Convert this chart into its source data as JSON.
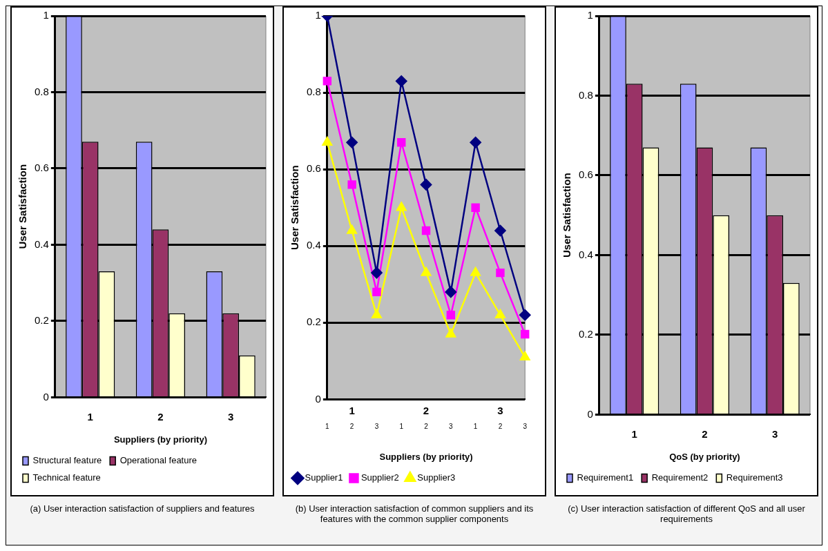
{
  "chart_data": [
    {
      "type": "bar",
      "categories": [
        "1",
        "2",
        "3"
      ],
      "ylabel": "User Satisfaction",
      "xlabel": "Suppliers (by priority)",
      "ylim": [
        0,
        1
      ],
      "yticks": [
        0,
        0.2,
        0.4,
        0.6,
        0.8,
        1
      ],
      "grid": "y",
      "legend": "bottom left",
      "series": [
        {
          "name": "Structural feature",
          "color": "#9999ff",
          "values": [
            1,
            0.67,
            0.33
          ]
        },
        {
          "name": "Operational feature",
          "color": "#993366",
          "values": [
            0.67,
            0.44,
            0.22
          ]
        },
        {
          "name": "Technical feature",
          "color": "#ffffcc",
          "values": [
            0.33,
            0.22,
            0.11
          ]
        }
      ],
      "annotations": [
        "(a) User interaction satisfaction of suppliers and features"
      ]
    },
    {
      "type": "line",
      "categories": [
        "1",
        "2",
        "3",
        "1",
        "2",
        "3",
        "1",
        "2",
        "3"
      ],
      "ylabel": "User Satisfaction",
      "xlabel": "Suppliers (by priority)",
      "ylim": [
        0,
        1
      ],
      "yticks": [
        0,
        0.2,
        0.4,
        0.6,
        0.8,
        1
      ],
      "grid": "y",
      "legend": "bottom left",
      "series": [
        {
          "name": "Supplier1",
          "color": "#000080",
          "marker": "diamond",
          "values": [
            1,
            0.67,
            0.33,
            0.83,
            0.56,
            0.28,
            0.67,
            0.44,
            0.22
          ]
        },
        {
          "name": "Supplier2",
          "color": "#ff00ff",
          "marker": "square",
          "values": [
            0.83,
            0.56,
            0.28,
            0.67,
            0.44,
            0.22,
            0.5,
            0.33,
            0.17
          ]
        },
        {
          "name": "Supplier3",
          "color": "#ffff00",
          "marker": "triangle",
          "values": [
            0.67,
            0.44,
            0.22,
            0.5,
            0.33,
            0.17,
            0.33,
            0.22,
            0.11
          ]
        }
      ],
      "annotations": [
        "1",
        "2",
        "3",
        "(b) User interaction satisfaction of common suppliers and its features with the common supplier components"
      ]
    },
    {
      "type": "bar",
      "categories": [
        "1",
        "2",
        "3"
      ],
      "ylabel": "User Satisfaction",
      "xlabel": "QoS (by priority)",
      "ylim": [
        0,
        1
      ],
      "yticks": [
        0,
        0.2,
        0.4,
        0.6,
        0.8,
        1
      ],
      "grid": "y",
      "legend": "bottom left",
      "series": [
        {
          "name": "Requirement1",
          "color": "#9999ff",
          "values": [
            1,
            0.83,
            0.67
          ]
        },
        {
          "name": "Requirement2",
          "color": "#993366",
          "values": [
            0.83,
            0.67,
            0.5
          ]
        },
        {
          "name": "Requirement3",
          "color": "#ffffcc",
          "values": [
            0.67,
            0.5,
            0.33
          ]
        }
      ],
      "annotations": [
        "(c) User interaction satisfaction of different QoS and all user requirements"
      ]
    }
  ]
}
